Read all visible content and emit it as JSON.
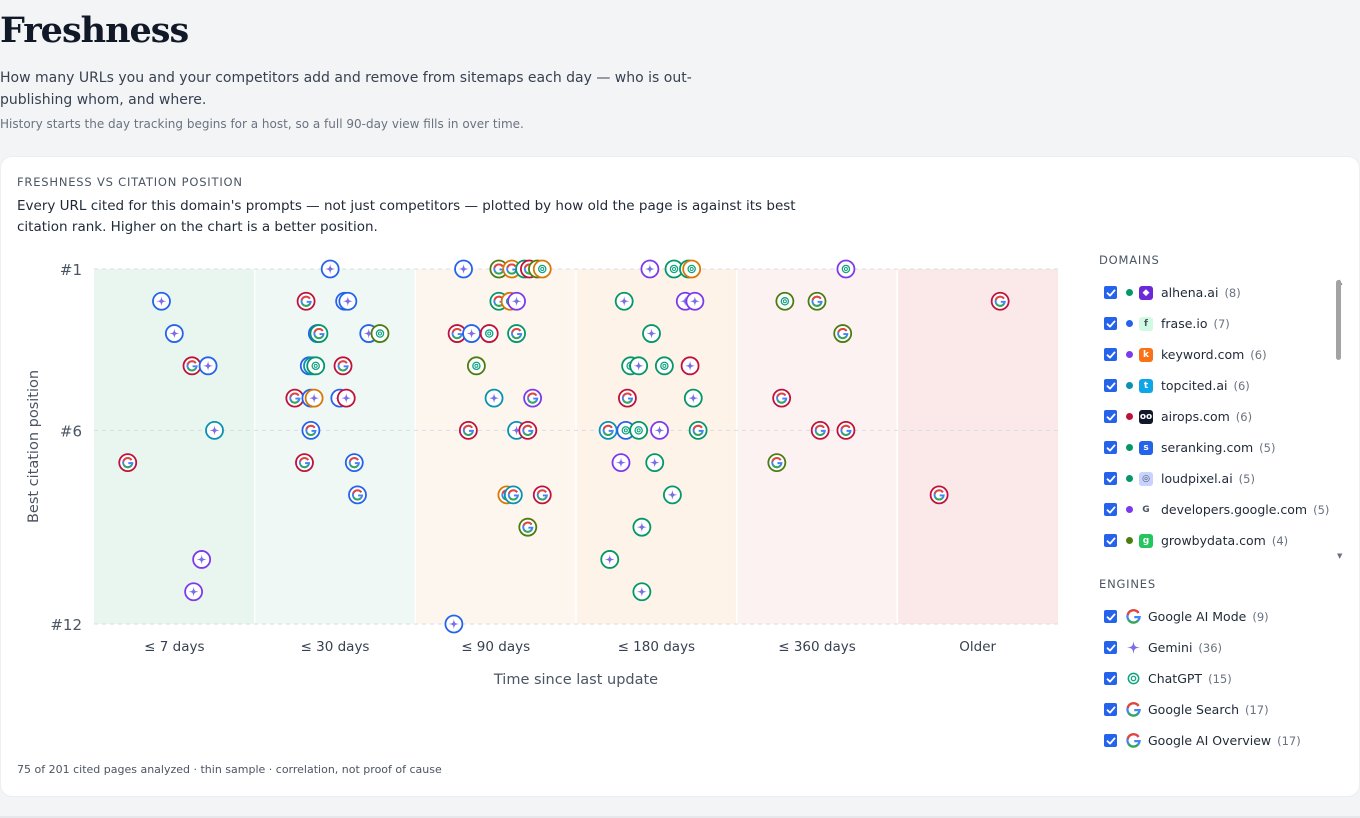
{
  "page": {
    "title": "Freshness",
    "intro": "How many URLs you and your competitors add and remove from sitemaps each day — who is out-publishing whom, and where.",
    "note": "History starts the day tracking begins for a host, so a full 90-day view fills in over time."
  },
  "card": {
    "kicker": "FRESHNESS VS CITATION POSITION",
    "description": "Every URL cited for this domain's prompts — not just competitors — plotted by how old the page is against its best citation rank. Higher on the chart is a better position.",
    "footnote": "75 of 201 cited pages analyzed · thin sample · correlation, not proof of cause"
  },
  "legend": {
    "domains_title": "DOMAINS",
    "engines_title": "ENGINES",
    "domains": [
      {
        "name": "alhena.ai",
        "count": "(8)",
        "color": "#059669",
        "icon": "alhena-logo-icon",
        "icon_color": "#6d28d9",
        "icon_glyph": "◆"
      },
      {
        "name": "frase.io",
        "count": "(7)",
        "color": "#2563eb",
        "icon": "frase-logo-icon",
        "icon_color": "#d1fae5",
        "icon_glyph": "f"
      },
      {
        "name": "keyword.com",
        "count": "(6)",
        "color": "#7c3aed",
        "icon": "keyword-logo-icon",
        "icon_color": "#f97316",
        "icon_glyph": "k"
      },
      {
        "name": "topcited.ai",
        "count": "(6)",
        "color": "#0891b2",
        "icon": "topcited-logo-icon",
        "icon_color": "#0ea5e9",
        "icon_glyph": "t"
      },
      {
        "name": "airops.com",
        "count": "(6)",
        "color": "#be123c",
        "icon": "airops-logo-icon",
        "icon_color": "#111827",
        "icon_glyph": "oo"
      },
      {
        "name": "seranking.com",
        "count": "(5)",
        "color": "#059669",
        "icon": "seranking-logo-icon",
        "icon_color": "#2563eb",
        "icon_glyph": "s"
      },
      {
        "name": "loudpixel.ai",
        "count": "(5)",
        "color": "#059669",
        "icon": "loudpixel-logo-icon",
        "icon_color": "#c7d2fe",
        "icon_glyph": "◎"
      },
      {
        "name": "developers.google.com",
        "count": "(5)",
        "color": "#7c3aed",
        "icon": "google-logo-icon",
        "icon_color": "#ffffff",
        "icon_glyph": "G"
      },
      {
        "name": "growbydata.com",
        "count": "(4)",
        "color": "#4d7c0f",
        "icon": "growbydata-logo-icon",
        "icon_color": "#22c55e",
        "icon_glyph": "g"
      }
    ],
    "engines": [
      {
        "name": "Google AI Mode",
        "count": "(9)",
        "icon": "google-ai-mode-icon",
        "kind": "google"
      },
      {
        "name": "Gemini",
        "count": "(36)",
        "icon": "gemini-icon",
        "kind": "gemini"
      },
      {
        "name": "ChatGPT",
        "count": "(15)",
        "icon": "chatgpt-icon",
        "kind": "chatgpt"
      },
      {
        "name": "Google Search",
        "count": "(17)",
        "icon": "google-search-icon",
        "kind": "google"
      },
      {
        "name": "Google AI Overview",
        "count": "(17)",
        "icon": "google-ai-overview-icon",
        "kind": "google"
      }
    ]
  },
  "chart_data": {
    "type": "scatter",
    "xlabel": "Time since last update",
    "ylabel": "Best citation position",
    "categories": [
      "≤ 7 days",
      "≤ 30 days",
      "≤ 90 days",
      "≤ 180 days",
      "≤ 360 days",
      "Older"
    ],
    "y_ticks": [
      "#1",
      "#6",
      "#12"
    ],
    "y_tick_values": [
      1,
      6,
      12
    ],
    "ylim": [
      1,
      12
    ],
    "y_inverted": true,
    "band_colors": [
      "#e9f6f0",
      "#eff8f5",
      "#fdf6ee",
      "#fdf3e8",
      "#fdf2f2",
      "#fbe9ea"
    ],
    "engine_colors": {
      "gemini": "#7c3aed",
      "chatgpt": "#059669",
      "google": "#dc2626"
    },
    "points": [
      {
        "c": 0,
        "x": 0.42,
        "y": 2,
        "e": "gemini",
        "color": "#2563eb"
      },
      {
        "c": 0,
        "x": 0.5,
        "y": 3,
        "e": "gemini",
        "color": "#2563eb"
      },
      {
        "c": 0,
        "x": 0.61,
        "y": 4,
        "e": "google",
        "color": "#be123c"
      },
      {
        "c": 0,
        "x": 0.71,
        "y": 4,
        "e": "gemini",
        "color": "#2563eb"
      },
      {
        "c": 0,
        "x": 0.75,
        "y": 6,
        "e": "gemini",
        "color": "#0891b2"
      },
      {
        "c": 0,
        "x": 0.21,
        "y": 7,
        "e": "google",
        "color": "#be123c"
      },
      {
        "c": 0,
        "x": 0.67,
        "y": 10,
        "e": "gemini",
        "color": "#7c3aed"
      },
      {
        "c": 0,
        "x": 0.62,
        "y": 11,
        "e": "gemini",
        "color": "#7c3aed"
      },
      {
        "c": 1,
        "x": 0.47,
        "y": 1,
        "e": "gemini",
        "color": "#2563eb"
      },
      {
        "c": 1,
        "x": 0.32,
        "y": 2,
        "e": "google",
        "color": "#be123c"
      },
      {
        "c": 1,
        "x": 0.56,
        "y": 2,
        "e": "gemini",
        "color": "#2563eb"
      },
      {
        "c": 1,
        "x": 0.58,
        "y": 2,
        "e": "gemini",
        "color": "#2563eb"
      },
      {
        "c": 1,
        "x": 0.39,
        "y": 3,
        "e": "google",
        "color": "#2563eb"
      },
      {
        "c": 1,
        "x": 0.4,
        "y": 3,
        "e": "google",
        "color": "#059669"
      },
      {
        "c": 1,
        "x": 0.71,
        "y": 3,
        "e": "gemini",
        "color": "#2563eb"
      },
      {
        "c": 1,
        "x": 0.78,
        "y": 3,
        "e": "chatgpt",
        "color": "#4d7c0f"
      },
      {
        "c": 1,
        "x": 0.34,
        "y": 4,
        "e": "gemini",
        "color": "#2563eb"
      },
      {
        "c": 1,
        "x": 0.36,
        "y": 4,
        "e": "chatgpt",
        "color": "#0891b2"
      },
      {
        "c": 1,
        "x": 0.38,
        "y": 4,
        "e": "chatgpt",
        "color": "#059669"
      },
      {
        "c": 1,
        "x": 0.55,
        "y": 4,
        "e": "google",
        "color": "#be123c"
      },
      {
        "c": 1,
        "x": 0.25,
        "y": 5,
        "e": "google",
        "color": "#be123c"
      },
      {
        "c": 1,
        "x": 0.35,
        "y": 5,
        "e": "gemini",
        "color": "#2563eb"
      },
      {
        "c": 1,
        "x": 0.37,
        "y": 5,
        "e": "gemini",
        "color": "#d97706"
      },
      {
        "c": 1,
        "x": 0.53,
        "y": 5,
        "e": "gemini",
        "color": "#2563eb"
      },
      {
        "c": 1,
        "x": 0.57,
        "y": 5,
        "e": "gemini",
        "color": "#be123c"
      },
      {
        "c": 1,
        "x": 0.35,
        "y": 6,
        "e": "google",
        "color": "#2563eb"
      },
      {
        "c": 1,
        "x": 0.31,
        "y": 7,
        "e": "google",
        "color": "#be123c"
      },
      {
        "c": 1,
        "x": 0.62,
        "y": 7,
        "e": "google",
        "color": "#2563eb"
      },
      {
        "c": 1,
        "x": 0.64,
        "y": 8,
        "e": "google",
        "color": "#2563eb"
      },
      {
        "c": 2,
        "x": 0.3,
        "y": 1,
        "e": "gemini",
        "color": "#2563eb"
      },
      {
        "c": 2,
        "x": 0.52,
        "y": 1,
        "e": "google",
        "color": "#4d7c0f"
      },
      {
        "c": 2,
        "x": 0.6,
        "y": 1,
        "e": "google",
        "color": "#d97706"
      },
      {
        "c": 2,
        "x": 0.68,
        "y": 1,
        "e": "chatgpt",
        "color": "#059669"
      },
      {
        "c": 2,
        "x": 0.71,
        "y": 1,
        "e": "google",
        "color": "#be123c"
      },
      {
        "c": 2,
        "x": 0.76,
        "y": 1,
        "e": "chatgpt",
        "color": "#4d7c0f"
      },
      {
        "c": 2,
        "x": 0.79,
        "y": 1,
        "e": "chatgpt",
        "color": "#d97706"
      },
      {
        "c": 2,
        "x": 0.52,
        "y": 2,
        "e": "google",
        "color": "#059669"
      },
      {
        "c": 2,
        "x": 0.59,
        "y": 2,
        "e": "chatgpt",
        "color": "#d97706"
      },
      {
        "c": 2,
        "x": 0.63,
        "y": 2,
        "e": "gemini",
        "color": "#7c3aed"
      },
      {
        "c": 2,
        "x": 0.26,
        "y": 3,
        "e": "google",
        "color": "#be123c"
      },
      {
        "c": 2,
        "x": 0.35,
        "y": 3,
        "e": "gemini",
        "color": "#2563eb"
      },
      {
        "c": 2,
        "x": 0.46,
        "y": 3,
        "e": "chatgpt",
        "color": "#be123c"
      },
      {
        "c": 2,
        "x": 0.63,
        "y": 3,
        "e": "google",
        "color": "#059669"
      },
      {
        "c": 2,
        "x": 0.38,
        "y": 4,
        "e": "chatgpt",
        "color": "#4d7c0f"
      },
      {
        "c": 2,
        "x": 0.49,
        "y": 5,
        "e": "gemini",
        "color": "#0891b2"
      },
      {
        "c": 2,
        "x": 0.73,
        "y": 5,
        "e": "google",
        "color": "#7c3aed"
      },
      {
        "c": 2,
        "x": 0.33,
        "y": 6,
        "e": "google",
        "color": "#be123c"
      },
      {
        "c": 2,
        "x": 0.63,
        "y": 6,
        "e": "gemini",
        "color": "#0891b2"
      },
      {
        "c": 2,
        "x": 0.7,
        "y": 6,
        "e": "google",
        "color": "#be123c"
      },
      {
        "c": 2,
        "x": 0.57,
        "y": 8,
        "e": "google",
        "color": "#d97706"
      },
      {
        "c": 2,
        "x": 0.61,
        "y": 8,
        "e": "google",
        "color": "#0891b2"
      },
      {
        "c": 2,
        "x": 0.79,
        "y": 8,
        "e": "google",
        "color": "#be123c"
      },
      {
        "c": 2,
        "x": 0.7,
        "y": 9,
        "e": "google",
        "color": "#4d7c0f"
      },
      {
        "c": 2,
        "x": 0.24,
        "y": 12,
        "e": "gemini",
        "color": "#2563eb"
      },
      {
        "c": 3,
        "x": 0.46,
        "y": 1,
        "e": "gemini",
        "color": "#7c3aed"
      },
      {
        "c": 3,
        "x": 0.61,
        "y": 1,
        "e": "chatgpt",
        "color": "#059669"
      },
      {
        "c": 3,
        "x": 0.7,
        "y": 1,
        "e": "chatgpt",
        "color": "#059669"
      },
      {
        "c": 3,
        "x": 0.72,
        "y": 1,
        "e": "chatgpt",
        "color": "#d97706"
      },
      {
        "c": 3,
        "x": 0.3,
        "y": 2,
        "e": "gemini",
        "color": "#059669"
      },
      {
        "c": 3,
        "x": 0.68,
        "y": 2,
        "e": "gemini",
        "color": "#7c3aed"
      },
      {
        "c": 3,
        "x": 0.74,
        "y": 2,
        "e": "gemini",
        "color": "#7c3aed"
      },
      {
        "c": 3,
        "x": 0.47,
        "y": 3,
        "e": "gemini",
        "color": "#059669"
      },
      {
        "c": 3,
        "x": 0.34,
        "y": 4,
        "e": "chatgpt",
        "color": "#059669"
      },
      {
        "c": 3,
        "x": 0.39,
        "y": 4,
        "e": "gemini",
        "color": "#059669"
      },
      {
        "c": 3,
        "x": 0.55,
        "y": 4,
        "e": "chatgpt",
        "color": "#059669"
      },
      {
        "c": 3,
        "x": 0.71,
        "y": 4,
        "e": "gemini",
        "color": "#be123c"
      },
      {
        "c": 3,
        "x": 0.32,
        "y": 5,
        "e": "google",
        "color": "#be123c"
      },
      {
        "c": 3,
        "x": 0.73,
        "y": 5,
        "e": "gemini",
        "color": "#059669"
      },
      {
        "c": 3,
        "x": 0.2,
        "y": 6,
        "e": "google",
        "color": "#0891b2"
      },
      {
        "c": 3,
        "x": 0.31,
        "y": 6,
        "e": "chatgpt",
        "color": "#2563eb"
      },
      {
        "c": 3,
        "x": 0.39,
        "y": 6,
        "e": "chatgpt",
        "color": "#059669"
      },
      {
        "c": 3,
        "x": 0.52,
        "y": 6,
        "e": "gemini",
        "color": "#7c3aed"
      },
      {
        "c": 3,
        "x": 0.76,
        "y": 6,
        "e": "google",
        "color": "#059669"
      },
      {
        "c": 3,
        "x": 0.28,
        "y": 7,
        "e": "gemini",
        "color": "#7c3aed"
      },
      {
        "c": 3,
        "x": 0.49,
        "y": 7,
        "e": "gemini",
        "color": "#059669"
      },
      {
        "c": 3,
        "x": 0.6,
        "y": 8,
        "e": "gemini",
        "color": "#059669"
      },
      {
        "c": 3,
        "x": 0.41,
        "y": 9,
        "e": "gemini",
        "color": "#059669"
      },
      {
        "c": 3,
        "x": 0.21,
        "y": 10,
        "e": "gemini",
        "color": "#059669"
      },
      {
        "c": 3,
        "x": 0.41,
        "y": 11,
        "e": "gemini",
        "color": "#059669"
      },
      {
        "c": 4,
        "x": 0.68,
        "y": 1,
        "e": "chatgpt",
        "color": "#7c3aed"
      },
      {
        "c": 4,
        "x": 0.3,
        "y": 2,
        "e": "chatgpt",
        "color": "#4d7c0f"
      },
      {
        "c": 4,
        "x": 0.5,
        "y": 2,
        "e": "google",
        "color": "#4d7c0f"
      },
      {
        "c": 4,
        "x": 0.66,
        "y": 3,
        "e": "google",
        "color": "#4d7c0f"
      },
      {
        "c": 4,
        "x": 0.28,
        "y": 5,
        "e": "google",
        "color": "#be123c"
      },
      {
        "c": 4,
        "x": 0.52,
        "y": 6,
        "e": "google",
        "color": "#be123c"
      },
      {
        "c": 4,
        "x": 0.68,
        "y": 6,
        "e": "google",
        "color": "#be123c"
      },
      {
        "c": 4,
        "x": 0.25,
        "y": 7,
        "e": "google",
        "color": "#4d7c0f"
      },
      {
        "c": 5,
        "x": 0.64,
        "y": 2,
        "e": "google",
        "color": "#be123c"
      },
      {
        "c": 5,
        "x": 0.26,
        "y": 8,
        "e": "google",
        "color": "#be123c"
      }
    ]
  }
}
